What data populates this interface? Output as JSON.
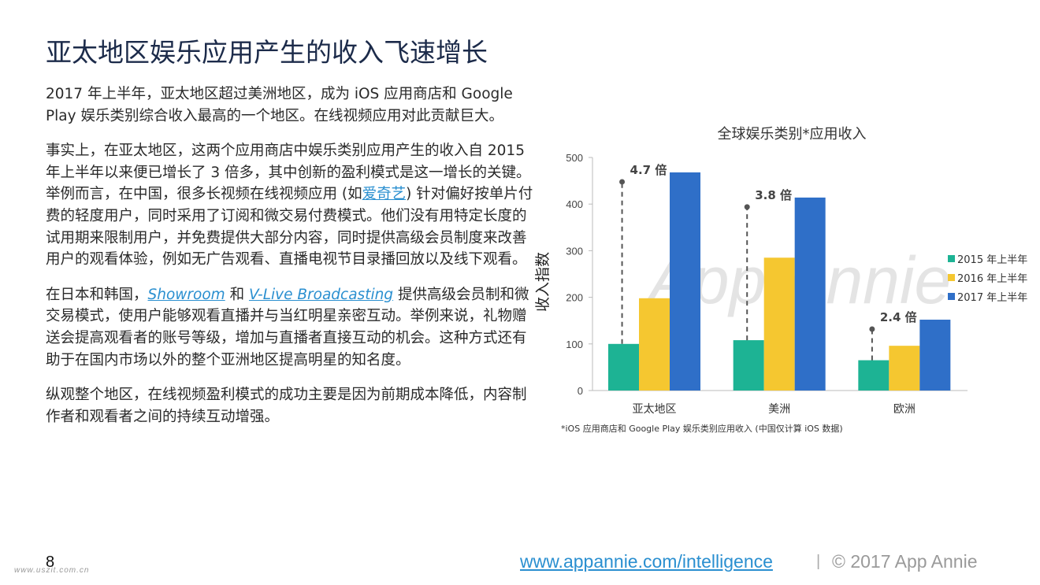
{
  "page_title": "亚太地区娱乐应用产生的收入飞速增长",
  "paragraphs": {
    "p1": "2017 年上半年，亚太地区超过美洲地区，成为 iOS 应用商店和 Google Play 娱乐类别综合收入最高的一个地区。在线视频应用对此贡献巨大。",
    "p2_a": "事实上，在亚太地区，这两个应用商店中娱乐类别应用产生的收入自 2015 年上半年以来便已增长了 3 倍多，其中创新的盈利模式是这一增长的关键。举例而言，在中国，很多长视频在线视频应用 (如",
    "p2_link": "爱奇艺",
    "p2_b": ") 针对偏好按单片付费的轻度用户，同时采用了订阅和微交易付费模式。他们没有用特定长度的试用期来限制用户，并免费提供大部分内容，同时提供高级会员制度来改善用户的观看体验，例如无广告观看、直播电视节目录播回放以及线下观看。",
    "p3_a": "在日本和韩国，",
    "p3_link1": "Showroom",
    "p3_b": " 和 ",
    "p3_link2": "V-Live Broadcasting",
    "p3_c": " 提供高级会员制和微交易模式，使用户能够观看直播并与当红明星亲密互动。举例来说，礼物赠送会提高观看者的账号等级，增加与直播者直接互动的机会。这种方式还有助于在国内市场以外的整个亚洲地区提高明星的知名度。",
    "p4": "纵观整个地区，在线视频盈利模式的成功主要是因为前期成本降低，内容制作者和观看者之间的持续互动增强。"
  },
  "chart_data": {
    "type": "bar",
    "title": "全球娱乐类别*应用收入",
    "ylabel": "收入指数",
    "xlabel": "",
    "categories": [
      "亚太地区",
      "美洲",
      "欧洲"
    ],
    "series": [
      {
        "name": "2015 年上半年",
        "color": "#1db394",
        "values": [
          100,
          108,
          65
        ]
      },
      {
        "name": "2016 年上半年",
        "color": "#f5c730",
        "values": [
          198,
          285,
          96
        ]
      },
      {
        "name": "2017 年上半年",
        "color": "#2f6fc8",
        "values": [
          468,
          414,
          152
        ]
      }
    ],
    "ylim": [
      0,
      500
    ],
    "yticks": [
      0,
      100,
      200,
      300,
      400,
      500
    ],
    "grid": false,
    "legend": "right",
    "annotations": [
      "4.7 倍",
      "3.8 倍",
      "2.4 倍"
    ],
    "watermark": "App Annie"
  },
  "footnote": "*iOS 应用商店和 Google Play 娱乐类别应用收入 (中国仅计算 iOS 数据)",
  "footer": {
    "page_number": "8",
    "link": "www.appannie.com/intelligence",
    "separator": "|",
    "copyright": "© 2017 App Annie",
    "watermark_url": "www.uszit.com.cn"
  }
}
